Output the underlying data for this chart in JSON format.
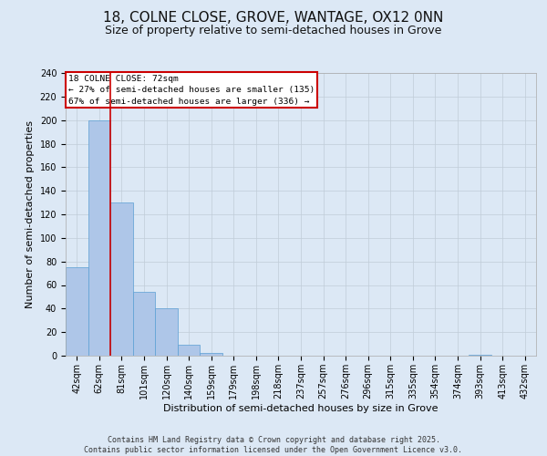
{
  "title_line1": "18, COLNE CLOSE, GROVE, WANTAGE, OX12 0NN",
  "title_line2": "Size of property relative to semi-detached houses in Grove",
  "xlabel": "Distribution of semi-detached houses by size in Grove",
  "ylabel": "Number of semi-detached properties",
  "categories": [
    "42sqm",
    "62sqm",
    "81sqm",
    "101sqm",
    "120sqm",
    "140sqm",
    "159sqm",
    "179sqm",
    "198sqm",
    "218sqm",
    "237sqm",
    "257sqm",
    "276sqm",
    "296sqm",
    "315sqm",
    "335sqm",
    "354sqm",
    "374sqm",
    "393sqm",
    "413sqm",
    "432sqm"
  ],
  "values": [
    75,
    200,
    130,
    54,
    40,
    9,
    2,
    0,
    0,
    0,
    0,
    0,
    0,
    0,
    0,
    0,
    0,
    0,
    1,
    0,
    0
  ],
  "bar_color": "#aec6e8",
  "bar_edge_color": "#5a9fd4",
  "vline_x": 1.5,
  "vline_color": "#cc0000",
  "annotation_title": "18 COLNE CLOSE: 72sqm",
  "annotation_line2": "← 27% of semi-detached houses are smaller (135)",
  "annotation_line3": "67% of semi-detached houses are larger (336) →",
  "annotation_box_color": "#ffffff",
  "annotation_box_edge": "#cc0000",
  "ylim": [
    0,
    240
  ],
  "yticks": [
    0,
    20,
    40,
    60,
    80,
    100,
    120,
    140,
    160,
    180,
    200,
    220,
    240
  ],
  "background_color": "#dce8f5",
  "plot_bg_color": "#dce8f5",
  "footer": "Contains HM Land Registry data © Crown copyright and database right 2025.\nContains public sector information licensed under the Open Government Licence v3.0.",
  "title_fontsize": 11,
  "subtitle_fontsize": 9,
  "axis_label_fontsize": 8,
  "tick_fontsize": 7,
  "footer_fontsize": 6
}
